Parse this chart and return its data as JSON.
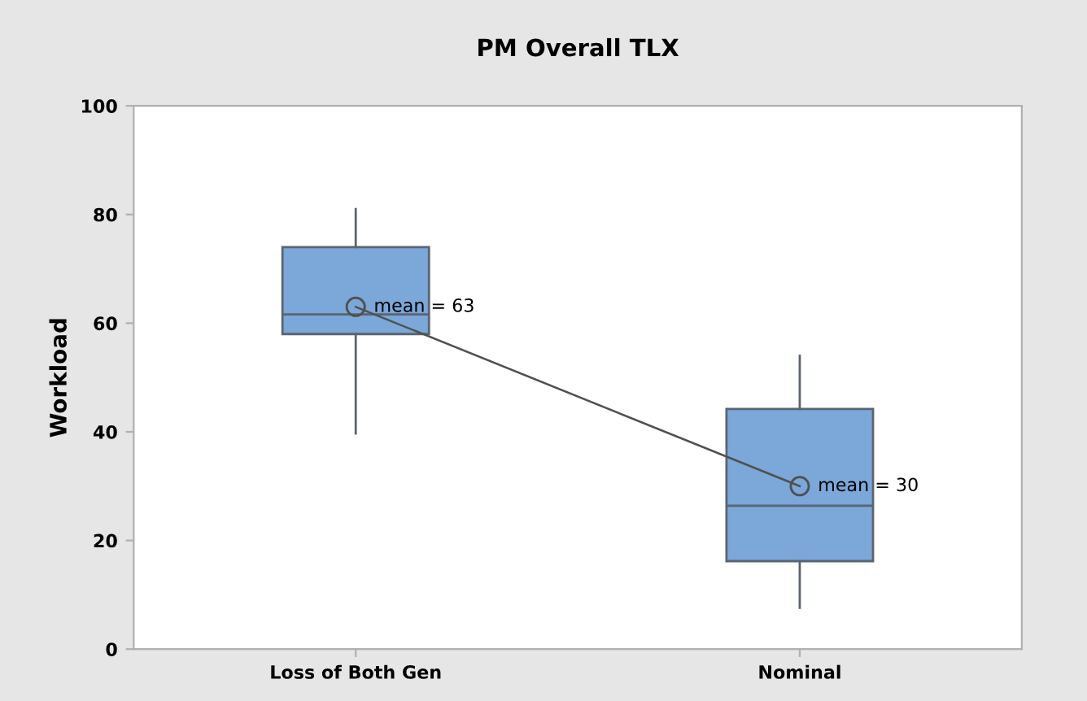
{
  "chart_data": {
    "type": "box",
    "title": "PM Overall TLX",
    "ylabel": "Workload",
    "categories": [
      "Loss of Both Gen",
      "Nominal"
    ],
    "boxes": [
      {
        "low": 39.7,
        "q1": 58,
        "median": 61.6,
        "q3": 74,
        "high": 81,
        "mean": 63
      },
      {
        "low": 7.6,
        "q1": 16.2,
        "median": 26.4,
        "q3": 44.2,
        "high": 54,
        "mean": 30
      }
    ],
    "color": "#7ba7d9",
    "series": [
      {
        "type": "line",
        "color": "#505050",
        "values": [
          63,
          30
        ],
        "marker": "none"
      }
    ],
    "annotations": [
      {
        "text": "mean = 63",
        "x": "Loss of Both Gen",
        "y": 63
      },
      {
        "text": "mean = 30",
        "x": "Nominal",
        "y": 30
      }
    ],
    "ylim": [
      0,
      100
    ],
    "yticks": [
      0,
      20,
      40,
      60,
      80,
      100
    ],
    "grid": false,
    "legend": false
  }
}
